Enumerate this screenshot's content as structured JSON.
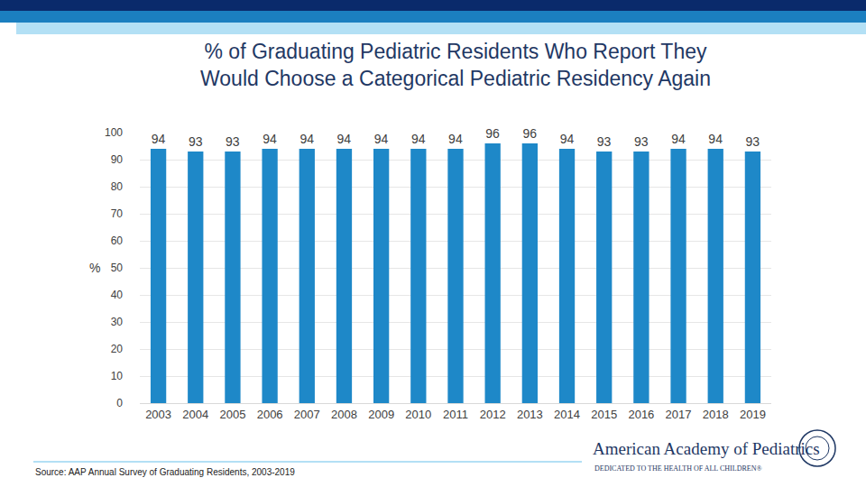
{
  "chart_data": {
    "type": "bar",
    "title": "% of Graduating Pediatric Residents Who Report They\nWould Choose a Categorical Pediatric Residency Again",
    "y_label": "%",
    "categories": [
      "2003",
      "2004",
      "2005",
      "2006",
      "2007",
      "2008",
      "2009",
      "2010",
      "2011",
      "2012",
      "2013",
      "2014",
      "2015",
      "2016",
      "2017",
      "2018",
      "2019"
    ],
    "values": [
      94,
      93,
      93,
      94,
      94,
      94,
      94,
      94,
      94,
      96,
      96,
      94,
      93,
      93,
      94,
      94,
      93
    ],
    "color": "#1e88c8",
    "ylim": [
      0,
      100
    ],
    "yticks": [
      0,
      10,
      20,
      30,
      40,
      50,
      60,
      70,
      80,
      90,
      100
    ],
    "grid": true,
    "data_labels": true,
    "annotations": [
      "Source: AAP Annual Survey of Graduating Residents, 2003-2019",
      "American Academy of Pediatrics",
      "DEDICATED TO THE HEALTH OF ALL CHILDREN®"
    ]
  }
}
